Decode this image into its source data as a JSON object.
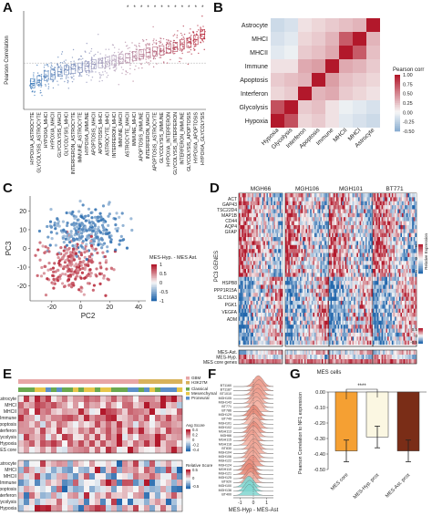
{
  "panels": {
    "a": "A",
    "b": "B",
    "c": "C",
    "d": "D",
    "e": "E",
    "f": "F",
    "g": "G"
  },
  "colors": {
    "blue": "#3a78b8",
    "red": "#b2182b",
    "lightblue": "#aac8e4",
    "lightred": "#e6a28f",
    "orange": "#f5a033",
    "cream": "#fbf7e2",
    "brown": "#7a2d17"
  },
  "chart_data": [
    {
      "id": "A",
      "type": "scatter",
      "ylabel": "Pearson Correlation",
      "significance_marker": "*",
      "categories": [
        "HYPOXIA_ASTROCYTE",
        "GLYCOLYSIS_ASTROCYTE",
        "HYPOXIA_MHCI",
        "HYPOXIA_MHCII",
        "GLYCOLYSIS_MHCII",
        "GLYCOLYSIS_MHCI",
        "INTERFERON_ASTROCYTE",
        "IMMUNE_ASTROCYTE",
        "HYPOXIA_IMMUNE",
        "APOPTOSIS_MHCII",
        "APOPTOSIS_MHCI",
        "ASTROCYTE_MHCI",
        "INTERFERON_MHCI",
        "IMMUNE_MHCII",
        "ASTROCYTE_MHCII",
        "IMMUNE_MHCI",
        "APOPTOSIS_IMMUNE",
        "INTERFERON_MHCII",
        "APOPTOSIS_ASTROCYTE",
        "GLYCOLYSIS_IMMUNE",
        "HYPOXIA_INTERFERON",
        "GLYCOLYSIS_INTERFERON",
        "INTERFERON_IMMUNE",
        "GLYCOLYSIS_APOPTOSIS",
        "HYPOXIA_APOPTOSIS",
        "HYPOXIA_GLYCOLYSIS"
      ],
      "median": [
        -0.35,
        -0.3,
        -0.22,
        -0.2,
        -0.15,
        -0.12,
        -0.1,
        -0.08,
        -0.05,
        -0.02,
        0.0,
        0.02,
        0.05,
        0.07,
        0.09,
        0.12,
        0.15,
        0.18,
        0.2,
        0.22,
        0.25,
        0.28,
        0.32,
        0.35,
        0.4,
        0.5
      ],
      "significant": [
        false,
        false,
        false,
        false,
        false,
        false,
        false,
        false,
        false,
        false,
        false,
        false,
        false,
        false,
        true,
        true,
        true,
        true,
        true,
        true,
        true,
        true,
        true,
        true,
        true,
        true
      ]
    },
    {
      "id": "B",
      "type": "heatmap",
      "rows": [
        "Astrocyte",
        "MHCI",
        "MHCII",
        "Immune",
        "Apoptosis",
        "Interferon",
        "Glycolysis",
        "Hypoxia"
      ],
      "columns": [
        "Hypoxia",
        "Glycolysis",
        "Interferon",
        "Apoptosis",
        "Immune",
        "MHCII",
        "MHCI",
        "Astrocyte"
      ],
      "values": [
        [
          -0.2,
          -0.15,
          0.1,
          0.15,
          0.2,
          0.25,
          0.3,
          1.0
        ],
        [
          -0.15,
          -0.1,
          0.15,
          0.2,
          0.3,
          0.7,
          1.0,
          0.3
        ],
        [
          -0.1,
          -0.05,
          0.2,
          0.25,
          0.35,
          1.0,
          0.7,
          0.25
        ],
        [
          0.1,
          0.1,
          0.35,
          0.4,
          1.0,
          0.35,
          0.3,
          0.2
        ],
        [
          0.2,
          0.25,
          0.3,
          1.0,
          0.4,
          0.25,
          0.2,
          0.15
        ],
        [
          0.15,
          0.2,
          1.0,
          0.3,
          0.35,
          0.2,
          0.15,
          0.1
        ],
        [
          0.75,
          1.0,
          0.2,
          0.25,
          0.1,
          -0.05,
          -0.1,
          -0.15
        ],
        [
          1.0,
          0.75,
          0.15,
          0.2,
          0.1,
          -0.1,
          -0.15,
          -0.2
        ]
      ],
      "legend_title": "Pearson corr",
      "legend_ticks": [
        "1.00",
        "0.75",
        "0.50",
        "0.25",
        "0.00",
        "-0.25",
        "-0.50"
      ]
    },
    {
      "id": "C",
      "type": "scatter",
      "xlabel": "PC2",
      "ylabel": "PC3",
      "x_ticks": [
        -20,
        0,
        20,
        40
      ],
      "y_ticks": [
        20,
        10,
        0,
        -10,
        -20
      ],
      "xlim": [
        -35,
        45
      ],
      "ylim": [
        -28,
        28
      ],
      "color_label": "MES-Hyp. - MES Ast.",
      "color_ticks": [
        "1",
        "0.5",
        "0",
        "-0.5",
        "-1"
      ]
    },
    {
      "id": "D",
      "type": "heatmap",
      "samples": [
        "MGH66",
        "MGH106",
        "MGH101",
        "BT771"
      ],
      "y_title": "PC3 GENES",
      "x_title": "MES cells",
      "genes_top": [
        "ACT",
        "GAP43",
        "TSC22D4",
        "MAP1B",
        "CD44",
        "AQP4",
        "GFAP"
      ],
      "genes_bottom": [
        "HSPB8",
        "PPP1R15A",
        "SLC16A3",
        "PGK1",
        "VEGFA",
        "ADM"
      ],
      "row_labels": [
        "MES-Ast.",
        "MES-Hyp.",
        "MES core genes"
      ],
      "legend1_title": "Relative Expression",
      "legend1_ticks": [
        "2",
        "0",
        "-2"
      ],
      "legend2_ticks": [
        "0.5",
        "0",
        "-0.5"
      ]
    },
    {
      "id": "E",
      "type": "heatmap",
      "legend_groups": [
        "GBM",
        "H3K27M"
      ],
      "legend_subtypes": [
        "Classical",
        "Mesenchymal",
        "Proneural"
      ],
      "rows_top": [
        "Astrocyte",
        "MHCI",
        "MHCII",
        "Immune",
        "Apoptosis",
        "Interferon",
        "Glycolysis",
        "Hypoxia",
        "MES core"
      ],
      "rows_bottom": [
        "Astrocyte",
        "MHCI",
        "MHCII",
        "Immune",
        "Apoptosis",
        "Interferon",
        "Glycolysis",
        "Hypoxia"
      ],
      "avg_title": "Avg Score",
      "avg_ticks": [
        "0.4",
        "0.2",
        "0",
        "-0.2",
        "-0.4"
      ],
      "rel_title": "Relative Score",
      "rel_ticks": [
        "0.5",
        "0",
        "-0.5"
      ]
    },
    {
      "id": "F",
      "type": "area",
      "xlabel": "MES-Hyp - MES-Ast",
      "x_ticks": [
        "-1",
        "0",
        "1"
      ],
      "samples": [
        "BT1160",
        "BT1187",
        "BT1010",
        "MGH105",
        "MGH143",
        "BT771",
        "BT786",
        "MGH129",
        "BT749",
        "MGH101",
        "MGH102",
        "MGH113",
        "MGH66",
        "MGH115",
        "MGH118",
        "BT830",
        "MGH104",
        "MGH106",
        "MGH122",
        "MGH124",
        "MGH110",
        "MGH121",
        "MGH125",
        "BT920",
        "MGH100",
        "MGH136",
        "BT400"
      ]
    },
    {
      "id": "G",
      "type": "bar",
      "ylabel": "Pearson Correlation to NF1 expression",
      "categories": [
        "MES core",
        "MES-Hyp. prox",
        "MES-Ast. prox"
      ],
      "values": [
        -0.38,
        -0.29,
        -0.38
      ],
      "errors": [
        0.07,
        0.07,
        0.07
      ],
      "ylim": [
        -0.5,
        0
      ],
      "y_ticks": [
        "0.00",
        "-0.10",
        "-0.20",
        "-0.30",
        "-0.40",
        "-0.50"
      ],
      "significance": "****"
    }
  ]
}
